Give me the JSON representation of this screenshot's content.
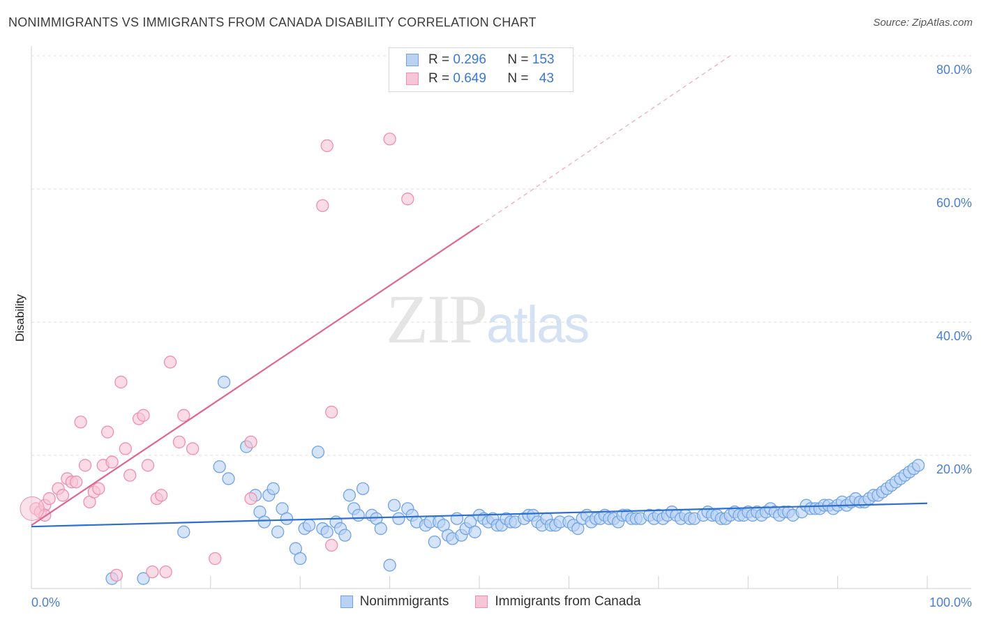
{
  "title": "NONIMMIGRANTS VS IMMIGRANTS FROM CANADA DISABILITY CORRELATION CHART",
  "source": "Source: ZipAtlas.com",
  "watermark": {
    "zip": "ZIP",
    "atlas": "atlas"
  },
  "legend": {
    "r_label": "R =",
    "n_label": "N =",
    "rows": [
      {
        "r": "0.296",
        "n": "153"
      },
      {
        "r": "0.649",
        "n": "43"
      }
    ]
  },
  "chart_data": {
    "type": "scatter",
    "title": "NONIMMIGRANTS VS IMMIGRANTS FROM CANADA DISABILITY CORRELATION CHART",
    "xlabel": "",
    "ylabel": "Disability",
    "xlim": [
      0,
      100
    ],
    "ylim": [
      0,
      80
    ],
    "x_tick_labels": [
      "0.0%",
      "100.0%"
    ],
    "y_ticks": [
      20,
      40,
      60,
      80
    ],
    "y_tick_labels": [
      "20.0%",
      "40.0%",
      "60.0%",
      "80.0%"
    ],
    "grid": true,
    "legend_position": "top-center",
    "series": [
      {
        "name": "Nonimmigrants",
        "color": "#6fa3e8",
        "fill": "#b9d2f3",
        "trend": {
          "x": [
            0,
            100
          ],
          "y": [
            9.3,
            12.8
          ],
          "color": "#2c6fcf"
        },
        "points": [
          [
            9,
            1.5
          ],
          [
            12.5,
            1.5
          ],
          [
            17,
            8.5
          ],
          [
            21,
            18.3
          ],
          [
            21.5,
            31
          ],
          [
            22,
            16.5
          ],
          [
            24,
            21.3
          ],
          [
            25,
            14
          ],
          [
            25.5,
            11.5
          ],
          [
            26,
            10
          ],
          [
            26.5,
            14
          ],
          [
            27,
            15
          ],
          [
            27.5,
            8.5
          ],
          [
            28,
            12
          ],
          [
            28.5,
            10.5
          ],
          [
            29.5,
            6
          ],
          [
            30,
            4.5
          ],
          [
            30.5,
            9
          ],
          [
            31,
            9.5
          ],
          [
            32,
            20.5
          ],
          [
            32.5,
            9
          ],
          [
            33,
            8.5
          ],
          [
            34,
            10
          ],
          [
            34.5,
            9
          ],
          [
            35,
            8
          ],
          [
            35.5,
            14
          ],
          [
            36,
            12
          ],
          [
            36.5,
            11
          ],
          [
            37,
            15
          ],
          [
            38,
            11
          ],
          [
            38.5,
            10.5
          ],
          [
            39,
            9
          ],
          [
            40,
            3.5
          ],
          [
            40.5,
            12.5
          ],
          [
            41,
            10.5
          ],
          [
            42,
            12
          ],
          [
            42.5,
            11
          ],
          [
            43,
            10
          ],
          [
            44,
            9.5
          ],
          [
            44.5,
            10
          ],
          [
            45,
            7
          ],
          [
            45.5,
            10
          ],
          [
            46,
            9.5
          ],
          [
            46.5,
            8
          ],
          [
            47,
            7.5
          ],
          [
            47.5,
            10.5
          ],
          [
            48,
            8
          ],
          [
            48.5,
            9
          ],
          [
            49,
            10
          ],
          [
            49.5,
            8.5
          ],
          [
            50,
            11
          ],
          [
            50.5,
            10.5
          ],
          [
            51,
            10
          ],
          [
            51.5,
            10.5
          ],
          [
            52,
            9.5
          ],
          [
            52.5,
            9.5
          ],
          [
            53,
            10.5
          ],
          [
            53.5,
            10
          ],
          [
            54,
            10
          ],
          [
            55,
            10.5
          ],
          [
            55.5,
            11
          ],
          [
            56,
            11
          ],
          [
            56.5,
            10
          ],
          [
            57,
            9.5
          ],
          [
            57.5,
            10.5
          ],
          [
            58,
            9.5
          ],
          [
            58.5,
            9.5
          ],
          [
            59,
            10
          ],
          [
            60,
            10
          ],
          [
            60.5,
            9.5
          ],
          [
            61,
            9
          ],
          [
            61.5,
            10.5
          ],
          [
            62,
            11
          ],
          [
            62.5,
            10
          ],
          [
            63,
            10.5
          ],
          [
            63.5,
            10.5
          ],
          [
            64,
            11
          ],
          [
            64.5,
            10.5
          ],
          [
            65,
            10.5
          ],
          [
            65.5,
            10
          ],
          [
            66,
            11
          ],
          [
            66.5,
            11
          ],
          [
            67,
            10.5
          ],
          [
            67.5,
            10.5
          ],
          [
            68,
            10.5
          ],
          [
            69,
            11
          ],
          [
            69.5,
            10.5
          ],
          [
            70,
            11
          ],
          [
            70.5,
            10.5
          ],
          [
            71,
            11
          ],
          [
            71.5,
            11.5
          ],
          [
            72,
            11
          ],
          [
            72.5,
            10.5
          ],
          [
            73,
            11
          ],
          [
            73.5,
            10.5
          ],
          [
            74,
            10.5
          ],
          [
            75,
            11
          ],
          [
            75.5,
            11.5
          ],
          [
            76,
            11
          ],
          [
            76.5,
            11
          ],
          [
            77,
            10.5
          ],
          [
            77.5,
            10.5
          ],
          [
            78,
            11
          ],
          [
            78.5,
            11.5
          ],
          [
            79,
            11
          ],
          [
            79.5,
            11
          ],
          [
            80,
            11.5
          ],
          [
            80.5,
            11
          ],
          [
            81,
            11.5
          ],
          [
            81.5,
            11
          ],
          [
            82,
            11.5
          ],
          [
            82.5,
            12
          ],
          [
            83,
            11.5
          ],
          [
            83.5,
            11
          ],
          [
            84,
            11.5
          ],
          [
            84.5,
            11.5
          ],
          [
            85,
            11
          ],
          [
            86,
            11.5
          ],
          [
            86.5,
            12.5
          ],
          [
            87,
            12
          ],
          [
            87.5,
            12
          ],
          [
            88,
            12
          ],
          [
            88.5,
            12.5
          ],
          [
            89,
            12.5
          ],
          [
            89.5,
            12
          ],
          [
            90,
            12.5
          ],
          [
            90.5,
            13
          ],
          [
            91,
            12.5
          ],
          [
            91.5,
            13
          ],
          [
            92,
            13.5
          ],
          [
            92.5,
            13
          ],
          [
            93,
            13
          ],
          [
            93.5,
            13.5
          ],
          [
            94,
            14
          ],
          [
            94.5,
            14
          ],
          [
            95,
            14.5
          ],
          [
            95.5,
            15
          ],
          [
            96,
            15.5
          ],
          [
            96.5,
            16
          ],
          [
            97,
            16.5
          ],
          [
            97.5,
            17
          ],
          [
            98,
            17.5
          ],
          [
            98.5,
            18
          ],
          [
            99,
            18.5
          ]
        ]
      },
      {
        "name": "Immigrants from Canada",
        "color": "#ee8fae",
        "fill": "#f8c5d6",
        "trend": {
          "x": [
            0,
            50
          ],
          "y": [
            9.5,
            54.5
          ],
          "dashed_to": [
            78,
            80
          ],
          "color": "#e0668f"
        },
        "points": [
          [
            0.5,
            12
          ],
          [
            1,
            11.5
          ],
          [
            1.5,
            12.5
          ],
          [
            2,
            13.5
          ],
          [
            3,
            15
          ],
          [
            3.5,
            14
          ],
          [
            4,
            16.5
          ],
          [
            4.5,
            16
          ],
          [
            5,
            16
          ],
          [
            5.5,
            25
          ],
          [
            6,
            18.5
          ],
          [
            6.5,
            13
          ],
          [
            7,
            14.5
          ],
          [
            7.5,
            15
          ],
          [
            8,
            18.5
          ],
          [
            8.5,
            23.5
          ],
          [
            9,
            19
          ],
          [
            9.5,
            2
          ],
          [
            10,
            31
          ],
          [
            10.5,
            21
          ],
          [
            11,
            17
          ],
          [
            12,
            25.5
          ],
          [
            12.5,
            26
          ],
          [
            13,
            18.5
          ],
          [
            13.5,
            2.5
          ],
          [
            14,
            13.5
          ],
          [
            14.5,
            14
          ],
          [
            15,
            2.5
          ],
          [
            15.5,
            34
          ],
          [
            16.5,
            22
          ],
          [
            17,
            26
          ],
          [
            18,
            21
          ],
          [
            20.5,
            4.5
          ],
          [
            24.5,
            22
          ],
          [
            24.5,
            13.5
          ],
          [
            32.5,
            57.5
          ],
          [
            33,
            66.5
          ],
          [
            33.5,
            26.5
          ],
          [
            33.5,
            6.5
          ],
          [
            40,
            67.5
          ],
          [
            42,
            58.5
          ],
          [
            1.5,
            11
          ]
        ]
      }
    ]
  }
}
